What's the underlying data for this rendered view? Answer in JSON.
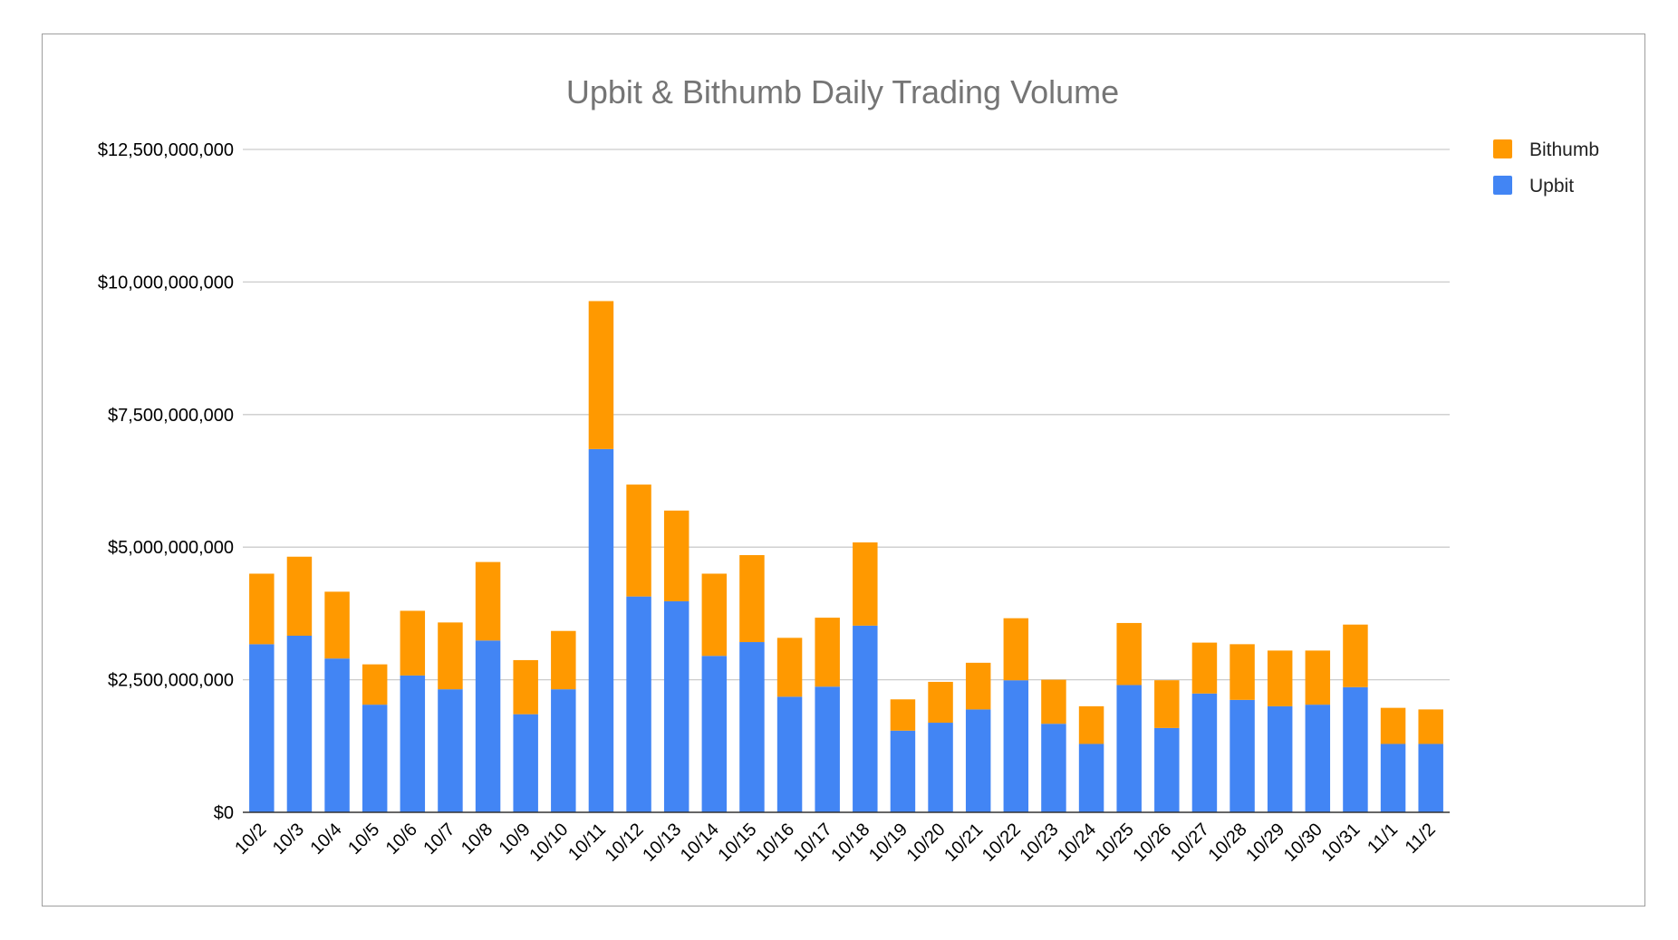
{
  "chart_data": {
    "type": "bar",
    "stacked": true,
    "title": "Upbit & Bithumb Daily Trading Volume",
    "xlabel": "",
    "ylabel": "",
    "ylim": [
      0,
      12500000000
    ],
    "yticks": [
      0,
      2500000000,
      5000000000,
      7500000000,
      10000000000,
      12500000000
    ],
    "ytick_labels": [
      "$0",
      "$2,500,000,000",
      "$5,000,000,000",
      "$7,500,000,000",
      "$10,000,000,000",
      "$12,500,000,000"
    ],
    "grid": true,
    "legend_position": "top-right",
    "categories": [
      "10/2",
      "10/3",
      "10/4",
      "10/5",
      "10/6",
      "10/7",
      "10/8",
      "10/9",
      "10/10",
      "10/11",
      "10/12",
      "10/13",
      "10/14",
      "10/15",
      "10/16",
      "10/17",
      "10/18",
      "10/19",
      "10/20",
      "10/21",
      "10/22",
      "10/23",
      "10/24",
      "10/25",
      "10/26",
      "10/27",
      "10/28",
      "10/29",
      "10/30",
      "10/31",
      "11/1",
      "11/2"
    ],
    "series": [
      {
        "name": "Upbit",
        "color": "#4285f4",
        "values": [
          3170000000,
          3330000000,
          2900000000,
          2030000000,
          2580000000,
          2320000000,
          3240000000,
          1850000000,
          2320000000,
          6850000000,
          4070000000,
          3980000000,
          2950000000,
          3210000000,
          2180000000,
          2370000000,
          3520000000,
          1540000000,
          1690000000,
          1940000000,
          2490000000,
          1670000000,
          1290000000,
          2400000000,
          1590000000,
          2240000000,
          2120000000,
          2000000000,
          2030000000,
          2360000000,
          1290000000,
          1290000000
        ]
      },
      {
        "name": "Bithumb",
        "color": "#ff9900",
        "values": [
          1330000000,
          1490000000,
          1260000000,
          760000000,
          1220000000,
          1260000000,
          1480000000,
          1020000000,
          1100000000,
          2790000000,
          2110000000,
          1710000000,
          1550000000,
          1640000000,
          1110000000,
          1300000000,
          1570000000,
          590000000,
          770000000,
          880000000,
          1170000000,
          830000000,
          710000000,
          1170000000,
          900000000,
          960000000,
          1050000000,
          1050000000,
          1020000000,
          1180000000,
          680000000,
          650000000
        ]
      }
    ]
  }
}
